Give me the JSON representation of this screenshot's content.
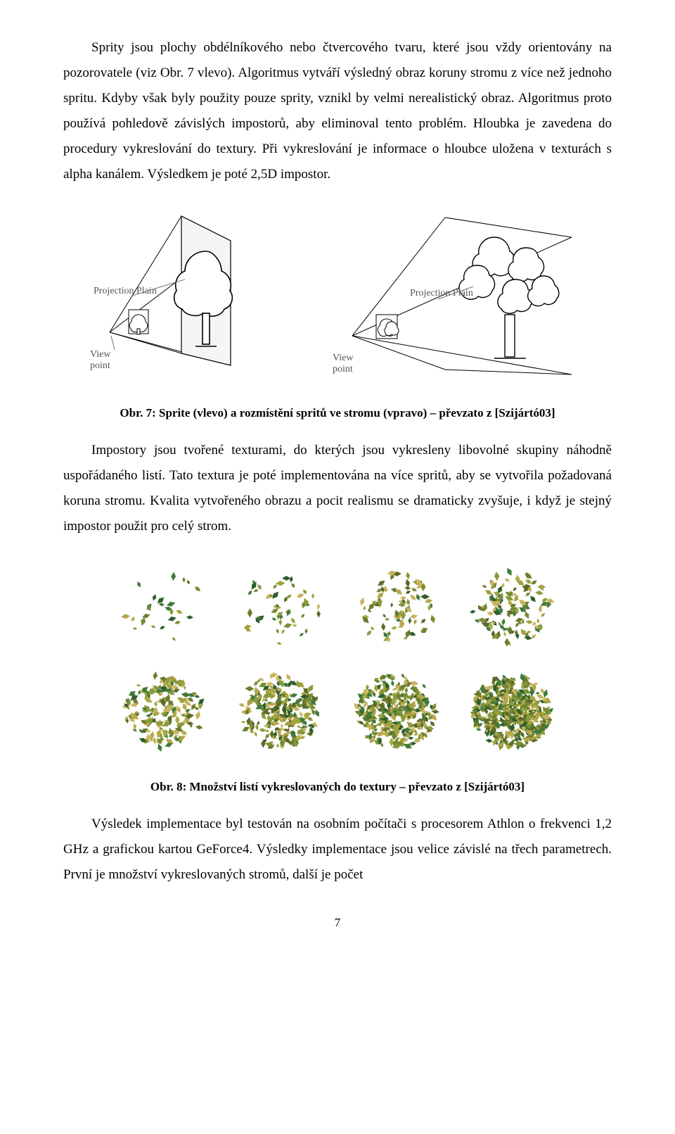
{
  "paragraphs": {
    "p1": "Sprity jsou plochy obdélníkového nebo čtvercového tvaru, které jsou vždy orientovány na pozorovatele (viz Obr. 7 vlevo). Algoritmus vytváří výsledný obraz koruny stromu z více než jednoho spritu. Kdyby však byly použity pouze sprity, vznikl by velmi nerealistický obraz. Algoritmus proto používá pohledově závislých impostorů, aby eliminoval tento problém. Hloubka je zavedena do procedury vykreslování do textury. Při vykreslování je informace o hloubce uložena v texturách s alpha kanálem. Výsledkem je poté 2,5D impostor.",
    "p2": "Impostory jsou tvořené texturami, do kterých jsou vykresleny libovolné skupiny náhodně uspořádaného listí. Tato textura je poté implementována na více spritů, aby se vytvořila požadovaná koruna stromu. Kvalita vytvořeného obrazu a pocit realismu se dramaticky zvyšuje, i když je stejný impostor použit pro celý strom.",
    "p3": "Výsledek implementace byl testován na osobním počítači s procesorem Athlon o frekvenci 1,2 GHz a grafickou kartou GeForce4. Výsledky implementace jsou velice závislé na třech parametrech. První je množství vykreslovaných stromů, další je počet"
  },
  "figures": {
    "fig7": {
      "caption": "Obr. 7: Sprite (vlevo) a rozmístění spritů ve stromu (vpravo) – převzato z [Szijártó03]",
      "labels": {
        "projection_plain": "Projection Plain",
        "view_point": "View point"
      },
      "colors": {
        "stroke": "#000000",
        "fill_white": "#ffffff",
        "plane_fill": "#f0f0f0",
        "label_color": "#555555"
      }
    },
    "fig8": {
      "caption": "Obr. 8: Množství listí vykreslovaných do textury – převzato z [Szijártó03]",
      "grid": {
        "rows": 2,
        "cols": 4
      },
      "densities": [
        25,
        50,
        80,
        120,
        180,
        260,
        360,
        480
      ],
      "leaf_colors": [
        "#6b7d2e",
        "#8a9b3a",
        "#a4a23d",
        "#b8a84a",
        "#7a8c33",
        "#5c6b28",
        "#3f7a3a",
        "#2e5e2a",
        "#c9b45e"
      ]
    }
  },
  "page_number": "7"
}
